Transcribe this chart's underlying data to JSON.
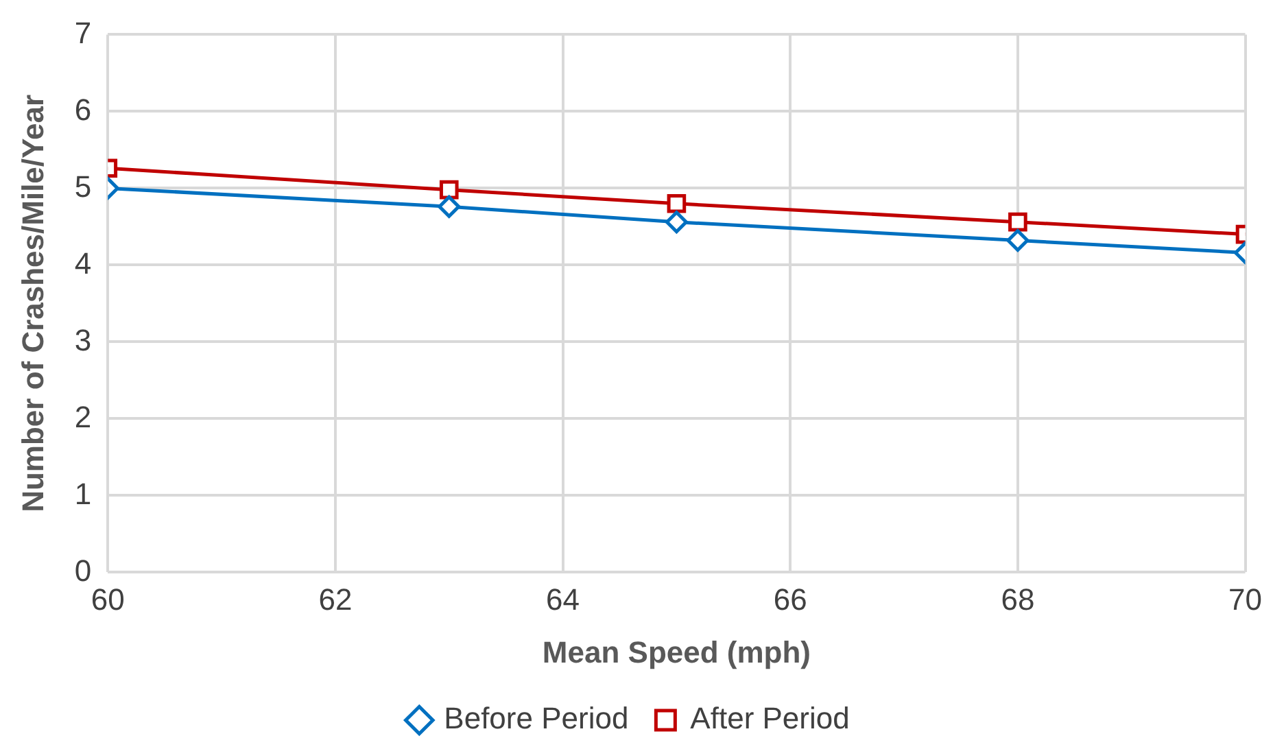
{
  "chart_data": {
    "type": "line",
    "xlabel": "Mean Speed (mph)",
    "ylabel": "Number of Crashes/Mile/Year",
    "x": [
      60,
      63,
      65,
      68,
      70
    ],
    "series": [
      {
        "name": "Before Period",
        "color": "#0070c0",
        "marker": "diamond",
        "values": [
          5.0,
          4.76,
          4.56,
          4.32,
          4.16
        ]
      },
      {
        "name": "After Period",
        "color": "#c00000",
        "marker": "square",
        "values": [
          5.26,
          4.98,
          4.8,
          4.56,
          4.4
        ]
      }
    ],
    "xlim": [
      60,
      70
    ],
    "xticks": [
      60,
      62,
      64,
      66,
      68,
      70
    ],
    "ylim": [
      0,
      7
    ],
    "yticks": [
      0,
      1,
      2,
      3,
      4,
      5,
      6,
      7
    ],
    "grid": true,
    "legend": "bottom"
  }
}
